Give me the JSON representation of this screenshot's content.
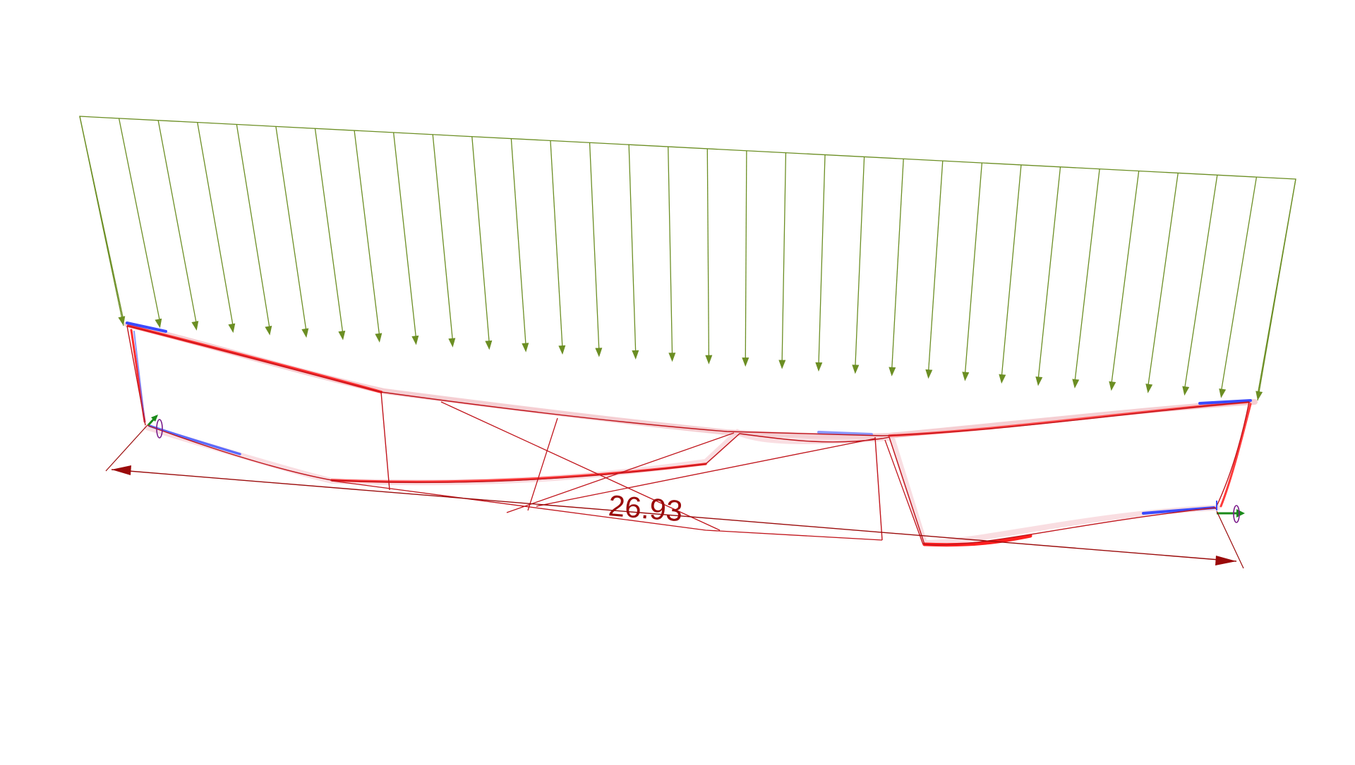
{
  "model": {
    "dimension": {
      "label": "26.93"
    },
    "load": {
      "arrow_count": 32
    },
    "colors": {
      "load": "#6b8e23",
      "member": "#c0141b",
      "deformation_tension": "#ff2d2d",
      "deformation_compression": "#3b4bff",
      "dimension": "#9a0a0a",
      "support_green": "#1a8a1a",
      "support_purple": "#7a1a8a",
      "background": "#ffffff"
    }
  }
}
